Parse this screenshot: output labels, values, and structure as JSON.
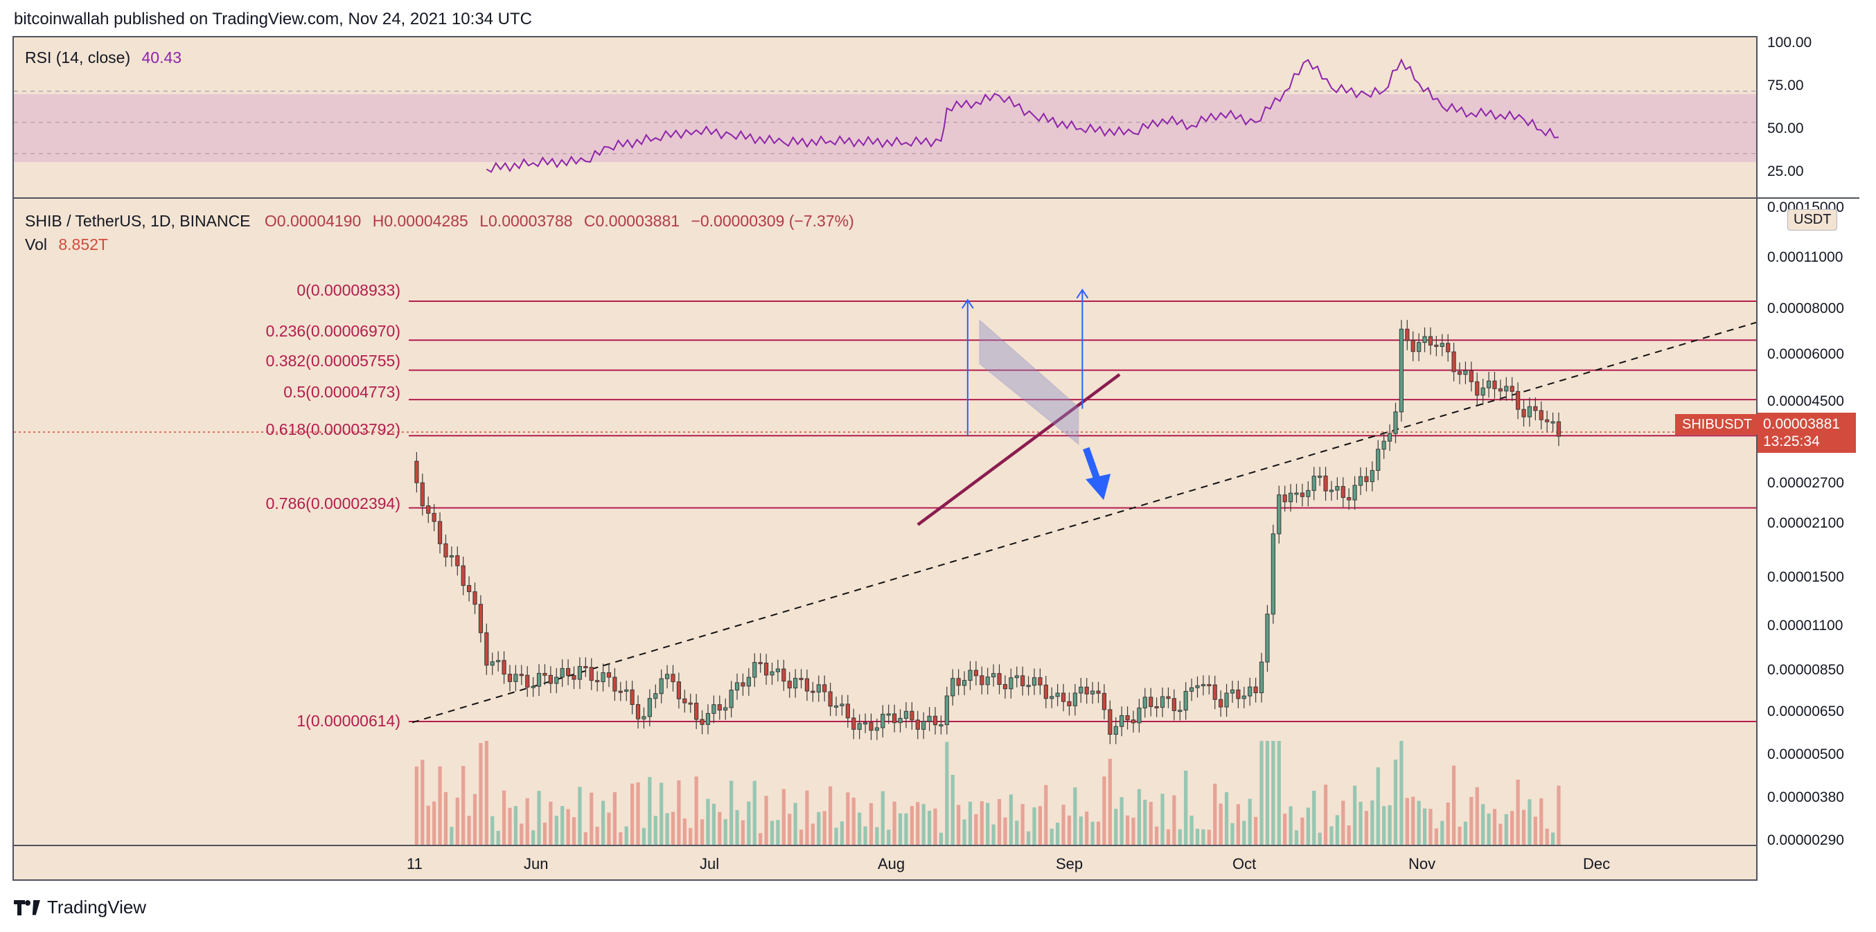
{
  "header": {
    "attribution": "bitcoinwallah published on TradingView.com, Nov 24, 2021 10:34 UTC"
  },
  "footer": {
    "brand": "TradingView"
  },
  "colors": {
    "up": "#5e9e86",
    "down": "#c9453c",
    "fib": "#b21d4d",
    "rsi_line": "#8e24aa",
    "rsi_zone": "#e7c8d1",
    "background": "#f3e3d2",
    "arrow": "#2962ff",
    "support": "#8b1c4f",
    "channel": "#8b8ec8"
  },
  "rsi_pane": {
    "legend": "RSI (14, close)",
    "value": "40.43",
    "ticks": [
      "100.00",
      "75.00",
      "50.00",
      "25.00"
    ]
  },
  "price_pane": {
    "legend": {
      "symbol": "SHIB / TetherUS, 1D, BINANCE",
      "open": "O0.00004190",
      "high": "H0.00004285",
      "low": "L0.00003788",
      "close": "C0.00003881",
      "change": "−0.00000309 (−7.37%)",
      "vol_label": "Vol",
      "vol_value": "8.852T"
    },
    "unit": "USDT",
    "symbol_tag": "SHIBUSDT",
    "last_price": "0.00003881",
    "countdown": "13:25:34",
    "ticks": [
      "0.00015000",
      "0.00011000",
      "0.00008000",
      "0.00006000",
      "0.00004500",
      "0.00002700",
      "0.00002100",
      "0.00001500",
      "0.00001100",
      "0.00000850",
      "0.00000650",
      "0.00000500",
      "0.00000380",
      "0.00000290"
    ],
    "fib_levels": [
      {
        "label": "0(0.00008933)",
        "price": 8.933e-05
      },
      {
        "label": "0.236(0.00006970)",
        "price": 6.97e-05
      },
      {
        "label": "0.382(0.00005755)",
        "price": 5.755e-05
      },
      {
        "label": "0.5(0.00004773)",
        "price": 4.773e-05
      },
      {
        "label": "0.618(0.00003792)",
        "price": 3.792e-05
      },
      {
        "label": "0.786(0.00002394)",
        "price": 2.394e-05
      },
      {
        "label": "1(0.00000614)",
        "price": 6.14e-06
      }
    ]
  },
  "time_axis": [
    "11",
    "Jun",
    "Jul",
    "Aug",
    "Sep",
    "Oct",
    "Nov",
    "Dec"
  ],
  "chart_data": {
    "type": "candlestick",
    "symbol": "SHIB / TetherUS, 1D, BINANCE",
    "y_scale": "log",
    "ylim": [
      2.9e-06,
      0.00015
    ],
    "rsi_range": [
      0,
      100
    ],
    "x_labels": [
      "11",
      "Jun",
      "Jul",
      "Aug",
      "Sep",
      "Oct",
      "Nov",
      "Dec"
    ],
    "close_series": [
      {
        "date": "2021-05-11",
        "close": 3e-05
      },
      {
        "date": "2021-05-14",
        "close": 2.3e-05
      },
      {
        "date": "2021-05-18",
        "close": 1.75e-05
      },
      {
        "date": "2021-05-21",
        "close": 1.4e-05
      },
      {
        "date": "2021-05-24",
        "close": 9e-06
      },
      {
        "date": "2021-05-28",
        "close": 8.5e-06
      },
      {
        "date": "2021-06-01",
        "close": 7.8e-06
      },
      {
        "date": "2021-06-05",
        "close": 8e-06
      },
      {
        "date": "2021-06-09",
        "close": 8.8e-06
      },
      {
        "date": "2021-06-14",
        "close": 7.8e-06
      },
      {
        "date": "2021-06-20",
        "close": 6.4e-06
      },
      {
        "date": "2021-06-23",
        "close": 8.5e-06
      },
      {
        "date": "2021-06-29",
        "close": 6.1e-06
      },
      {
        "date": "2021-07-05",
        "close": 7.4e-06
      },
      {
        "date": "2021-07-10",
        "close": 8.6e-06
      },
      {
        "date": "2021-07-16",
        "close": 8.1e-06
      },
      {
        "date": "2021-07-22",
        "close": 6.9e-06
      },
      {
        "date": "2021-07-28",
        "close": 6e-06
      },
      {
        "date": "2021-08-03",
        "close": 6.2e-06
      },
      {
        "date": "2021-08-10",
        "close": 6.3e-06
      },
      {
        "date": "2021-08-12",
        "close": 7.7e-06
      },
      {
        "date": "2021-08-18",
        "close": 8.3e-06
      },
      {
        "date": "2021-08-24",
        "close": 7.8e-06
      },
      {
        "date": "2021-08-30",
        "close": 7.2e-06
      },
      {
        "date": "2021-09-05",
        "close": 7.5e-06
      },
      {
        "date": "2021-09-08",
        "close": 5.8e-06
      },
      {
        "date": "2021-09-14",
        "close": 7e-06
      },
      {
        "date": "2021-09-20",
        "close": 6.6e-06
      },
      {
        "date": "2021-09-23",
        "close": 8.3e-06
      },
      {
        "date": "2021-09-27",
        "close": 7e-06
      },
      {
        "date": "2021-10-03",
        "close": 7.3e-06
      },
      {
        "date": "2021-10-05",
        "close": 1.25e-05
      },
      {
        "date": "2021-10-06",
        "close": 2e-05
      },
      {
        "date": "2021-10-07",
        "close": 2.7e-05
      },
      {
        "date": "2021-10-10",
        "close": 2.5e-05
      },
      {
        "date": "2021-10-14",
        "close": 2.85e-05
      },
      {
        "date": "2021-10-18",
        "close": 2.65e-05
      },
      {
        "date": "2021-10-22",
        "close": 2.85e-05
      },
      {
        "date": "2021-10-25",
        "close": 3.5e-05
      },
      {
        "date": "2021-10-27",
        "close": 4.5e-05
      },
      {
        "date": "2021-10-28",
        "close": 7.3e-05
      },
      {
        "date": "2021-10-30",
        "close": 7e-05
      },
      {
        "date": "2021-11-03",
        "close": 6.8e-05
      },
      {
        "date": "2021-11-06",
        "close": 5.8e-05
      },
      {
        "date": "2021-11-10",
        "close": 5.3e-05
      },
      {
        "date": "2021-11-14",
        "close": 5.2e-05
      },
      {
        "date": "2021-11-18",
        "close": 4.3e-05
      },
      {
        "date": "2021-11-21",
        "close": 4.5e-05
      },
      {
        "date": "2021-11-24",
        "close": 3.88e-05
      }
    ],
    "rsi_series": [
      {
        "date": "2021-05-24",
        "rsi": 20
      },
      {
        "date": "2021-06-01",
        "rsi": 24
      },
      {
        "date": "2021-06-10",
        "rsi": 25
      },
      {
        "date": "2021-06-14",
        "rsi": 34
      },
      {
        "date": "2021-06-22",
        "rsi": 40
      },
      {
        "date": "2021-06-29",
        "rsi": 45
      },
      {
        "date": "2021-07-05",
        "rsi": 42
      },
      {
        "date": "2021-07-14",
        "rsi": 37
      },
      {
        "date": "2021-07-22",
        "rsi": 38
      },
      {
        "date": "2021-08-04",
        "rsi": 37
      },
      {
        "date": "2021-08-10",
        "rsi": 38
      },
      {
        "date": "2021-08-11",
        "rsi": 59
      },
      {
        "date": "2021-08-16",
        "rsi": 63
      },
      {
        "date": "2021-08-20",
        "rsi": 67
      },
      {
        "date": "2021-08-26",
        "rsi": 54
      },
      {
        "date": "2021-09-03",
        "rsi": 46
      },
      {
        "date": "2021-09-12",
        "rsi": 43
      },
      {
        "date": "2021-09-17",
        "rsi": 52
      },
      {
        "date": "2021-09-22",
        "rsi": 48
      },
      {
        "date": "2021-09-27",
        "rsi": 56
      },
      {
        "date": "2021-10-03",
        "rsi": 50
      },
      {
        "date": "2021-10-08",
        "rsi": 70
      },
      {
        "date": "2021-10-12",
        "rsi": 90
      },
      {
        "date": "2021-10-16",
        "rsi": 72
      },
      {
        "date": "2021-10-22",
        "rsi": 68
      },
      {
        "date": "2021-10-25",
        "rsi": 70
      },
      {
        "date": "2021-10-28",
        "rsi": 90
      },
      {
        "date": "2021-10-31",
        "rsi": 75
      },
      {
        "date": "2021-11-04",
        "rsi": 60
      },
      {
        "date": "2021-11-09",
        "rsi": 56
      },
      {
        "date": "2021-11-14",
        "rsi": 55
      },
      {
        "date": "2021-11-18",
        "rsi": 52
      },
      {
        "date": "2021-11-21",
        "rsi": 45
      },
      {
        "date": "2021-11-24",
        "rsi": 40.43
      }
    ]
  }
}
